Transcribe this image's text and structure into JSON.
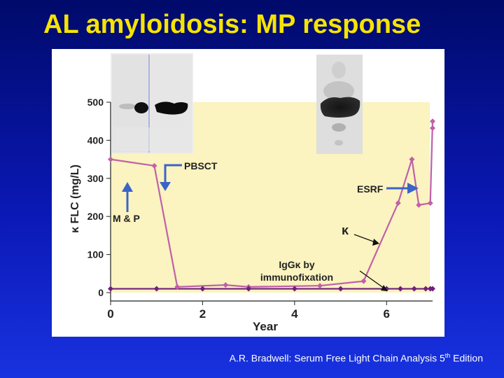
{
  "title": "AL amyloidosis: MP response",
  "footer": {
    "prefix": "A.R. Bradwell: Serum Free Light Chain Analysis 5",
    "sup": "th",
    "suffix": " Edition"
  },
  "colors": {
    "background": "#0a18b4",
    "title": "#f6e400",
    "plot_area": "#fbf3c0",
    "kappa_line": "#c060a8",
    "igg_line": "#70207a",
    "arrow_blue": "#3a64c8"
  },
  "chart_data": {
    "type": "line",
    "xlabel": "Year",
    "ylabel": "κ FLC (mg/L)",
    "xlim": [
      0,
      7
    ],
    "ylim": [
      0,
      500
    ],
    "xticks": [
      0,
      2,
      4,
      6
    ],
    "yticks": [
      0,
      100,
      200,
      300,
      400,
      500
    ],
    "grid": false,
    "series": [
      {
        "name": "κ",
        "x": [
          0,
          0.95,
          1.45,
          2.5,
          3.0,
          4.55,
          5.5,
          6.25,
          6.55,
          6.7,
          6.95,
          7.0
        ],
        "values": [
          350,
          333,
          15,
          20,
          15,
          18,
          30,
          235,
          350,
          230,
          235,
          450
        ]
      },
      {
        "name": "IgGκ by immunofixation",
        "x": [
          0,
          1.0,
          2.0,
          3.0,
          4.0,
          5.0,
          6.0,
          6.3,
          6.6,
          6.85,
          6.95,
          7.0
        ],
        "values": [
          10,
          10,
          10,
          10,
          10,
          10,
          10,
          10,
          10,
          10,
          10,
          10
        ]
      }
    ],
    "extra_points": [
      {
        "x": 7.0,
        "y": 432
      }
    ],
    "annotations": {
      "mp": "M & P",
      "pbsct": "PBSCT",
      "esrf": "ESRF",
      "kappa": "κ",
      "igg_line1": "IgGκ by",
      "igg_line2": "immunofixation"
    }
  }
}
